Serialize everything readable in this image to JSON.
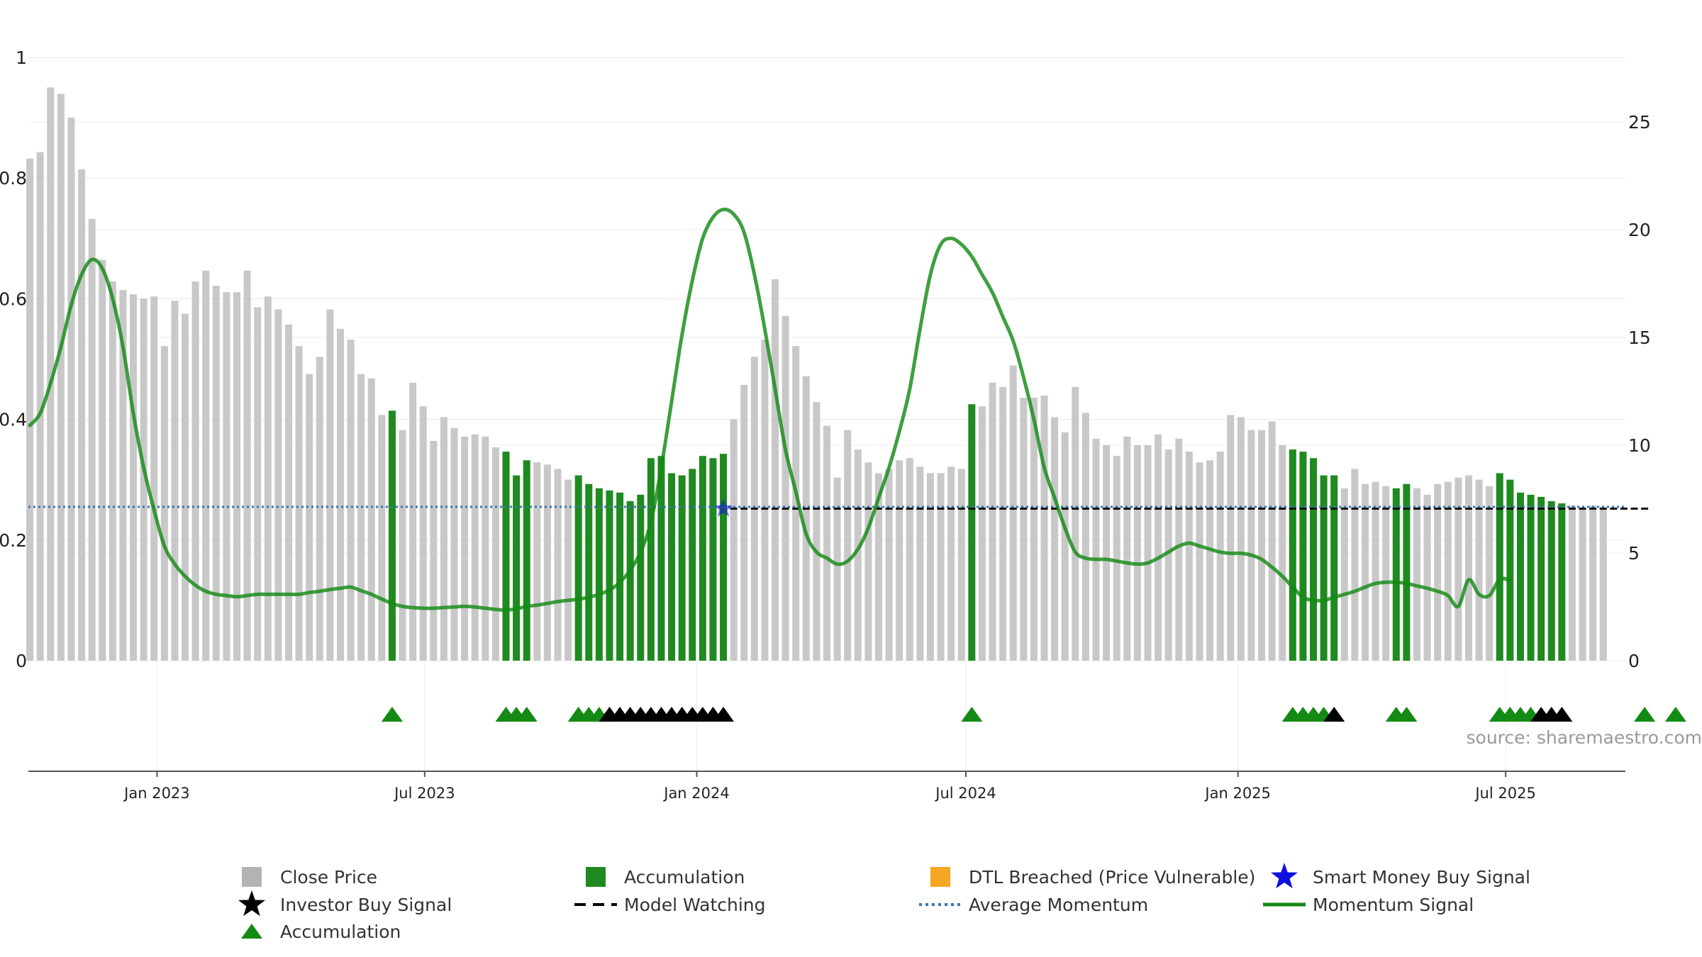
{
  "chart_data": {
    "type": "bar",
    "source_text": "source: sharemaestro.com",
    "left_axis": {
      "ylim": [
        0,
        1
      ],
      "ticks": [
        "0",
        "0.2",
        "0.4",
        "0.6",
        "0.8",
        "1"
      ],
      "tick_values": [
        0,
        0.2,
        0.4,
        0.6,
        0.8,
        1
      ]
    },
    "right_axis": {
      "ylim": [
        0,
        28
      ],
      "ticks": [
        "0",
        "5",
        "10",
        "15",
        "20",
        "25"
      ],
      "tick_values": [
        0,
        5,
        10,
        15,
        20,
        25
      ]
    },
    "x_axis": {
      "start": "2022-10-06",
      "end": "2025-09-20",
      "ticks": [
        {
          "date": "2023-01-01",
          "label": "Jan 2023"
        },
        {
          "date": "2023-07-01",
          "label": "Jul 2023"
        },
        {
          "date": "2024-01-01",
          "label": "Jan 2024"
        },
        {
          "date": "2024-07-01",
          "label": "Jul 2024"
        },
        {
          "date": "2025-01-01",
          "label": "Jan 2025"
        },
        {
          "date": "2025-07-01",
          "label": "Jul 2025"
        }
      ]
    },
    "bars": {
      "start_date": "2022-10-07",
      "interval_days": 7,
      "values": [
        23.3,
        23.6,
        26.6,
        26.3,
        25.2,
        22.8,
        20.5,
        18.6,
        17.6,
        17.2,
        17.0,
        16.8,
        16.9,
        14.6,
        16.7,
        16.1,
        17.6,
        18.1,
        17.4,
        17.1,
        17.1,
        18.1,
        16.4,
        16.9,
        16.3,
        15.6,
        14.6,
        13.3,
        14.1,
        16.3,
        15.4,
        14.9,
        13.3,
        13.1,
        11.4,
        11.6,
        10.7,
        12.9,
        11.8,
        10.2,
        11.3,
        10.8,
        10.4,
        10.5,
        10.4,
        9.9,
        9.7,
        8.6,
        9.3,
        9.2,
        9.1,
        8.9,
        8.4,
        8.6,
        8.2,
        8.0,
        7.9,
        7.8,
        7.4,
        7.7,
        9.4,
        9.5,
        8.7,
        8.6,
        8.9,
        9.5,
        9.4,
        9.6,
        11.2,
        12.8,
        14.1,
        14.9,
        17.7,
        16.0,
        14.6,
        13.2,
        12.0,
        10.9,
        8.5,
        10.7,
        9.8,
        9.2,
        8.7,
        8.9,
        9.3,
        9.4,
        9.0,
        8.7,
        8.7,
        9.0,
        8.9,
        11.9,
        11.8,
        12.9,
        12.7,
        13.7,
        12.2,
        12.2,
        12.3,
        11.3,
        10.6,
        12.7,
        11.5,
        10.3,
        10.0,
        9.5,
        10.4,
        10.0,
        10.0,
        10.5,
        9.8,
        10.3,
        9.7,
        9.2,
        9.3,
        9.7,
        11.4,
        11.3,
        10.7,
        10.7,
        11.1,
        10.0,
        9.8,
        9.7,
        9.4,
        8.6,
        8.6,
        8.0,
        8.9,
        8.2,
        8.3,
        8.1,
        8.0,
        8.2,
        8.0,
        7.7,
        8.2,
        8.3,
        8.5,
        8.6,
        8.4,
        8.1,
        8.7,
        8.4,
        7.8,
        7.7,
        7.6,
        7.4,
        7.3,
        7.2,
        7.1,
        7.2,
        7.1
      ],
      "accumulation": [
        [
          35,
          35
        ],
        [
          46,
          48
        ],
        [
          53,
          67
        ],
        [
          91,
          91
        ],
        [
          122,
          126
        ],
        [
          132,
          133
        ],
        [
          142,
          148
        ],
        [
          156,
          156
        ],
        [
          159,
          159
        ]
      ]
    },
    "momentum_signal": {
      "values": [
        0.39,
        0.41,
        0.46,
        0.52,
        0.59,
        0.64,
        0.665,
        0.65,
        0.6,
        0.52,
        0.41,
        0.32,
        0.25,
        0.19,
        0.16,
        0.14,
        0.125,
        0.115,
        0.11,
        0.108,
        0.106,
        0.108,
        0.11,
        0.11,
        0.11,
        0.11,
        0.11,
        0.113,
        0.115,
        0.118,
        0.12,
        0.122,
        0.116,
        0.11,
        0.102,
        0.095,
        0.09,
        0.088,
        0.087,
        0.087,
        0.088,
        0.089,
        0.09,
        0.089,
        0.087,
        0.085,
        0.084,
        0.086,
        0.09,
        0.092,
        0.095,
        0.098,
        0.1,
        0.102,
        0.105,
        0.11,
        0.117,
        0.13,
        0.15,
        0.18,
        0.23,
        0.32,
        0.43,
        0.54,
        0.63,
        0.7,
        0.735,
        0.748,
        0.74,
        0.71,
        0.64,
        0.55,
        0.45,
        0.35,
        0.28,
        0.21,
        0.18,
        0.17,
        0.16,
        0.165,
        0.185,
        0.22,
        0.27,
        0.32,
        0.38,
        0.45,
        0.55,
        0.64,
        0.69,
        0.7,
        0.69,
        0.67,
        0.64,
        0.61,
        0.57,
        0.53,
        0.47,
        0.4,
        0.32,
        0.27,
        0.22,
        0.18,
        0.17,
        0.168,
        0.168,
        0.165,
        0.162,
        0.16,
        0.162,
        0.17,
        0.18,
        0.19,
        0.195,
        0.19,
        0.185,
        0.18,
        0.178,
        0.178,
        0.175,
        0.168,
        0.155,
        0.14,
        0.122,
        0.105,
        0.1,
        0.1,
        0.105,
        0.11,
        0.115,
        0.122,
        0.128,
        0.13,
        0.13,
        0.128,
        0.124,
        0.12,
        0.115,
        0.108,
        0.09,
        0.134,
        0.11,
        0.108,
        0.135,
        0.133
      ],
      "color": "#138a13"
    },
    "average_momentum": {
      "value": 0.255,
      "color": "#3b75af"
    },
    "model_watching": {
      "value": 0.252,
      "start_index": 68,
      "end_index": 156,
      "color": "#111111"
    },
    "smart_money_buy_signals": [
      {
        "index": 67,
        "value": 0.252
      }
    ],
    "triangle_markers": [
      {
        "index": 35,
        "type": "accumulation"
      },
      {
        "index": 46,
        "type": "accumulation"
      },
      {
        "index": 47,
        "type": "accumulation"
      },
      {
        "index": 48,
        "type": "accumulation"
      },
      {
        "index": 53,
        "type": "accumulation"
      },
      {
        "index": 54,
        "type": "accumulation"
      },
      {
        "index": 55,
        "type": "accumulation"
      },
      {
        "index": 56,
        "type": "investor"
      },
      {
        "index": 57,
        "type": "investor"
      },
      {
        "index": 58,
        "type": "investor"
      },
      {
        "index": 59,
        "type": "investor"
      },
      {
        "index": 60,
        "type": "investor"
      },
      {
        "index": 61,
        "type": "investor"
      },
      {
        "index": 62,
        "type": "investor"
      },
      {
        "index": 63,
        "type": "investor"
      },
      {
        "index": 64,
        "type": "investor"
      },
      {
        "index": 65,
        "type": "investor"
      },
      {
        "index": 66,
        "type": "investor"
      },
      {
        "index": 67,
        "type": "investor"
      },
      {
        "index": 91,
        "type": "accumulation"
      },
      {
        "index": 122,
        "type": "accumulation"
      },
      {
        "index": 123,
        "type": "accumulation"
      },
      {
        "index": 124,
        "type": "accumulation"
      },
      {
        "index": 125,
        "type": "accumulation"
      },
      {
        "index": 126,
        "type": "investor"
      },
      {
        "index": 132,
        "type": "accumulation"
      },
      {
        "index": 133,
        "type": "accumulation"
      },
      {
        "index": 142,
        "type": "accumulation"
      },
      {
        "index": 143,
        "type": "accumulation"
      },
      {
        "index": 144,
        "type": "accumulation"
      },
      {
        "index": 145,
        "type": "accumulation"
      },
      {
        "index": 146,
        "type": "investor"
      },
      {
        "index": 147,
        "type": "investor"
      },
      {
        "index": 148,
        "type": "investor"
      },
      {
        "index": 156,
        "type": "accumulation"
      },
      {
        "index": 159,
        "type": "accumulation"
      }
    ],
    "colors": {
      "close_price": "#c8c8c8",
      "accumulation": "#1f8a1f",
      "dtl_breached": "#f5a623",
      "smart_money": "#1010dd",
      "investor_triangle": "#000000",
      "accumulation_triangle": "#138a13"
    },
    "legend": [
      {
        "label": "Close Price",
        "symbol": "square",
        "color": "#b3b3b3"
      },
      {
        "label": "Accumulation",
        "symbol": "square",
        "color": "#1f8a1f"
      },
      {
        "label": "DTL Breached (Price Vulnerable)",
        "symbol": "square",
        "color": "#f5a623"
      },
      {
        "label": "Smart Money Buy Signal",
        "symbol": "star",
        "color": "#1010dd"
      },
      {
        "label": "Investor Buy Signal",
        "symbol": "star",
        "color": "#000000"
      },
      {
        "label": "Model Watching",
        "symbol": "dash",
        "color": "#000000"
      },
      {
        "label": "Average Momentum",
        "symbol": "dotted",
        "color": "#3b75af"
      },
      {
        "label": "Momentum Signal",
        "symbol": "line",
        "color": "#138a13"
      },
      {
        "label": "Accumulation",
        "symbol": "triangle",
        "color": "#138a13"
      }
    ]
  }
}
